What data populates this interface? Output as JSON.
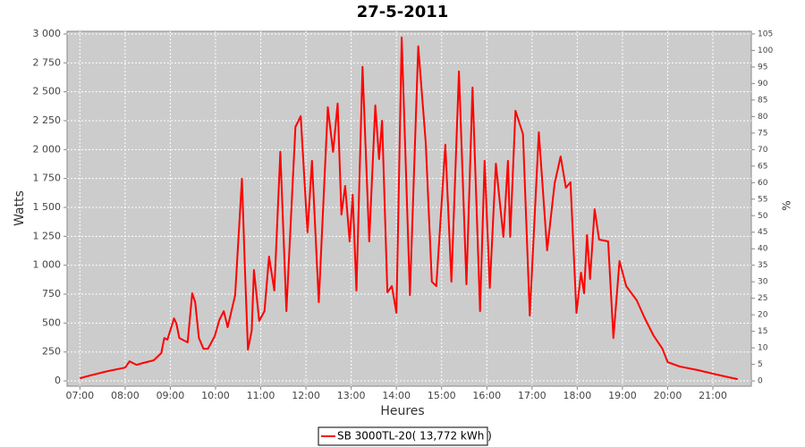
{
  "chart_data": {
    "type": "line",
    "title": "27-5-2011",
    "xlabel": "Heures",
    "ylabel": "Watts",
    "y2label": "%",
    "x": [
      "07:00",
      "07:13",
      "07:37",
      "08:00",
      "08:06",
      "08:15",
      "08:24",
      "08:38",
      "08:48",
      "08:52",
      "08:56",
      "09:05",
      "09:08",
      "09:12",
      "09:23",
      "09:29",
      "09:33",
      "09:38",
      "09:44",
      "09:50",
      "09:59",
      "10:05",
      "10:11",
      "10:16",
      "10:20",
      "10:26",
      "10:35",
      "10:39",
      "10:43",
      "10:48",
      "10:51",
      "10:58",
      "11:05",
      "11:11",
      "11:18",
      "11:26",
      "11:34",
      "11:46",
      "11:53",
      "12:02",
      "12:08",
      "12:17",
      "12:29",
      "12:36",
      "12:42",
      "12:47",
      "12:52",
      "12:58",
      "13:02",
      "13:07",
      "13:15",
      "13:24",
      "13:32",
      "13:37",
      "13:41",
      "13:48",
      "13:54",
      "14:00",
      "14:07",
      "14:18",
      "14:29",
      "14:39",
      "14:47",
      "14:53",
      "15:05",
      "15:13",
      "15:23",
      "15:33",
      "15:41",
      "15:51",
      "15:57",
      "16:04",
      "16:12",
      "16:22",
      "16:28",
      "16:31",
      "16:38",
      "16:48",
      "16:57",
      "17:09",
      "17:20",
      "17:30",
      "17:38",
      "17:45",
      "17:51",
      "17:59",
      "18:05",
      "18:09",
      "18:13",
      "18:17",
      "18:23",
      "18:29",
      "18:41",
      "18:48",
      "18:56",
      "19:05",
      "19:19",
      "19:29",
      "19:41",
      "19:53",
      "20:00",
      "20:16",
      "20:40",
      "21:00",
      "21:21",
      "21:33"
    ],
    "series": [
      {
        "name": "SB 3000TL-20( 13,772 kWh  )",
        "color": "#ff0000",
        "values": [
          23,
          46,
          85,
          115,
          170,
          139,
          155,
          178,
          240,
          371,
          356,
          541,
          495,
          371,
          333,
          758,
          681,
          371,
          278,
          278,
          387,
          526,
          603,
          464,
          572,
          742,
          1748,
          975,
          271,
          433,
          959,
          518,
          603,
          1075,
          781,
          1980,
          603,
          2196,
          2289,
          1284,
          1903,
          681,
          2367,
          1980,
          2398,
          1438,
          1686,
          1206,
          1609,
          781,
          2715,
          1206,
          2382,
          1918,
          2250,
          766,
          820,
          588,
          2970,
          742,
          2893,
          2057,
          858,
          820,
          2042,
          858,
          2676,
          835,
          2537,
          603,
          1903,
          804,
          1879,
          1245,
          1903,
          1245,
          2336,
          2134,
          565,
          2150,
          1129,
          1709,
          1941,
          1670,
          1717,
          588,
          936,
          758,
          1261,
          882,
          1485,
          1222,
          1206,
          371,
          1036,
          820,
          696,
          549,
          394,
          278,
          162,
          124,
          93,
          62,
          31,
          15
        ]
      }
    ],
    "xlim": [
      "06:43",
      "21:51"
    ],
    "xticks": [
      "07:00",
      "08:00",
      "09:00",
      "10:00",
      "11:00",
      "12:00",
      "13:00",
      "14:00",
      "15:00",
      "16:00",
      "17:00",
      "18:00",
      "19:00",
      "20:00",
      "21:00"
    ],
    "ylim": [
      -46,
      3023
    ],
    "yticks": [
      0,
      250,
      500,
      750,
      {
        "value": 1000,
        "label": "1 000"
      },
      {
        "value": 1250,
        "label": "1 250"
      },
      {
        "value": 1500,
        "label": "1 500"
      },
      {
        "value": 1750,
        "label": "1 750"
      },
      {
        "value": 2000,
        "label": "2 000"
      },
      {
        "value": 2250,
        "label": "2 250"
      },
      {
        "value": 2500,
        "label": "2 500"
      },
      {
        "value": 2750,
        "label": "2 750"
      },
      {
        "value": 3000,
        "label": "3 000"
      }
    ],
    "y2lim": [
      -1.6,
      105.8
    ],
    "y2ticks": [
      0,
      5,
      10,
      15,
      20,
      25,
      30,
      35,
      40,
      45,
      50,
      55,
      60,
      65,
      70,
      75,
      80,
      85,
      90,
      95,
      100,
      105
    ],
    "grid": true,
    "legend": "bottom"
  }
}
